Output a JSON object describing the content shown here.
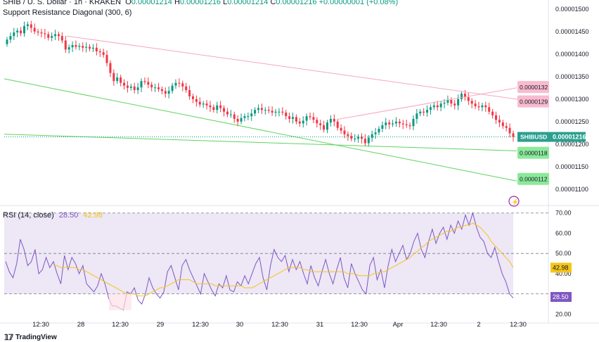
{
  "header": {
    "symbol_line": "SHIB / U. S. Dollar · 1h · KRAKEN",
    "o_label": "O",
    "o_value": "0.00001214",
    "h_label": "H",
    "h_value": "0.00001216",
    "l_label": "L",
    "l_value": "0.00001214",
    "c_label": "C",
    "c_value": "0.00001216",
    "change": "+0.00000001 (+0.08%)",
    "indicator": "Support Resistance Diagonal (300, 6)"
  },
  "rsi_header": {
    "label": "RSI (14, close)",
    "rsi_value": "28.50",
    "ma_value": "42.98"
  },
  "footer": {
    "brand": "TradingView"
  },
  "colors": {
    "up": "#089981",
    "down": "#f23645",
    "resistance": "#f7a6bd",
    "support": "#5fd35f",
    "rsi": "#7e57c2",
    "rsi_ma": "#f5c518",
    "rsi_band": "#ede7f6",
    "price_label": "#2b9f8f"
  },
  "chart_data": [
    {
      "type": "candlestick",
      "title": "SHIB / U. S. Dollar · 1h · KRAKEN",
      "ylim": [
        1.07e-05,
        1.52e-05
      ],
      "y_ticks": [
        "0.00001500",
        "0.00001450",
        "0.00001400",
        "0.00001350",
        "0.00001300",
        "0.00001250",
        "0.00001200",
        "0.00001150",
        "0.00001100"
      ],
      "y_tick_values": [
        1.5e-05,
        1.45e-05,
        1.4e-05,
        1.35e-05,
        1.3e-05,
        1.25e-05,
        1.2e-05,
        1.15e-05,
        1.1e-05
      ],
      "x_ticks": [
        "12:30",
        "28",
        "12:30",
        "29",
        "12:30",
        "30",
        "12:30",
        "31",
        "12:30",
        "Apr",
        "12:30",
        "2",
        "12:30"
      ],
      "close": [
        1.432,
        1.44,
        1.448,
        1.452,
        1.446,
        1.462,
        1.466,
        1.458,
        1.45,
        1.448,
        1.446,
        1.444,
        1.436,
        1.44,
        1.444,
        1.44,
        1.43,
        1.41,
        1.415,
        1.42,
        1.416,
        1.418,
        1.414,
        1.416,
        1.412,
        1.414,
        1.406,
        1.404,
        1.398,
        1.38,
        1.358,
        1.34,
        1.348,
        1.336,
        1.33,
        1.325,
        1.328,
        1.32,
        1.326,
        1.34,
        1.338,
        1.332,
        1.326,
        1.326,
        1.322,
        1.318,
        1.312,
        1.318,
        1.33,
        1.336,
        1.335,
        1.328,
        1.32,
        1.306,
        1.3,
        1.294,
        1.288,
        1.29,
        1.286,
        1.282,
        1.276,
        1.286,
        1.28,
        1.272,
        1.266,
        1.266,
        1.256,
        1.25,
        1.258,
        1.262,
        1.262,
        1.268,
        1.276,
        1.28,
        1.276,
        1.276,
        1.274,
        1.27,
        1.272,
        1.272,
        1.27,
        1.262,
        1.256,
        1.26,
        1.25,
        1.246,
        1.252,
        1.262,
        1.26,
        1.254,
        1.246,
        1.242,
        1.232,
        1.248,
        1.256,
        1.25,
        1.236,
        1.23,
        1.222,
        1.218,
        1.212,
        1.212,
        1.216,
        1.212,
        1.202,
        1.214,
        1.222,
        1.226,
        1.234,
        1.242,
        1.248,
        1.244,
        1.246,
        1.25,
        1.246,
        1.244,
        1.242,
        1.24,
        1.256,
        1.268,
        1.272,
        1.27,
        1.276,
        1.282,
        1.286,
        1.282,
        1.29,
        1.292,
        1.298,
        1.29,
        1.286,
        1.3,
        1.312,
        1.304,
        1.296,
        1.29,
        1.284,
        1.282,
        1.286,
        1.282,
        1.272,
        1.264,
        1.254,
        1.248,
        1.24,
        1.236,
        1.224,
        1.216
      ],
      "resistance_labels": [
        "0.0000132",
        "0.0000129"
      ],
      "support_labels": [
        "0.0000118",
        "0.0000112"
      ],
      "last_price_label": "SHIBUSD",
      "last_price": "0.00001216"
    },
    {
      "type": "line",
      "title": "RSI (14, close)",
      "ylim": [
        20,
        70
      ],
      "y_ticks": [
        "70.00",
        "60.00",
        "50.00",
        "40.00",
        "20.00"
      ],
      "y_tick_values": [
        70,
        60,
        50,
        40,
        20
      ],
      "levels": [
        70,
        50,
        30
      ],
      "series": [
        {
          "name": "RSI",
          "values": [
            46,
            41,
            38,
            45,
            57,
            52,
            44,
            46,
            52,
            40,
            42,
            48,
            43,
            46,
            40,
            35,
            49,
            42,
            48,
            45,
            40,
            44,
            35,
            33,
            31,
            34,
            40,
            35,
            28,
            24,
            24,
            23,
            22,
            31,
            30,
            33,
            27,
            25,
            30,
            38,
            33,
            30,
            28,
            31,
            41,
            44,
            38,
            32,
            44,
            47,
            42,
            38,
            34,
            30,
            40,
            36,
            32,
            29,
            35,
            33,
            39,
            32,
            31,
            36,
            34,
            39,
            35,
            40,
            45,
            48,
            38,
            32,
            44,
            52,
            48,
            46,
            49,
            41,
            47,
            42,
            46,
            40,
            35,
            44,
            38,
            34,
            41,
            47,
            40,
            35,
            42,
            48,
            38,
            33,
            45,
            40,
            36,
            32,
            30,
            44,
            48,
            37,
            42,
            33,
            44,
            52,
            46,
            50,
            54,
            47,
            50,
            56,
            60,
            52,
            48,
            56,
            62,
            55,
            60,
            63,
            57,
            64,
            60,
            66,
            62,
            69,
            64,
            70,
            63,
            58,
            56,
            50,
            48,
            53,
            46,
            40,
            36,
            30,
            28
          ]
        },
        {
          "name": "MA",
          "values": [
            null,
            null,
            null,
            null,
            null,
            null,
            null,
            null,
            null,
            null,
            null,
            null,
            null,
            44,
            44,
            43,
            43,
            43,
            43,
            43,
            42,
            42,
            41,
            40,
            39,
            38,
            37,
            36,
            35,
            34,
            33,
            32,
            31,
            30,
            30,
            30,
            29,
            29,
            29,
            30,
            31,
            32,
            33,
            33,
            34,
            35,
            36,
            37,
            37,
            37,
            37,
            36,
            35,
            35,
            35,
            35,
            35,
            34,
            34,
            34,
            34,
            34,
            34,
            34,
            34,
            33,
            33,
            33,
            34,
            35,
            36,
            37,
            38,
            39,
            40,
            41,
            42,
            43,
            43,
            43,
            43,
            42,
            42,
            41,
            41,
            41,
            41,
            41,
            41,
            41,
            41,
            41,
            41,
            40,
            40,
            40,
            39,
            39,
            39,
            39,
            40,
            40,
            41,
            41,
            42,
            43,
            44,
            45,
            46,
            47,
            48,
            50,
            51,
            53,
            54,
            56,
            57,
            58,
            59,
            60,
            61,
            61,
            62,
            63,
            63,
            64,
            64,
            65,
            64,
            63,
            61,
            59,
            56,
            54,
            52,
            50,
            48,
            46,
            43
          ]
        }
      ],
      "current_rsi": "28.50",
      "current_ma": "42.98"
    }
  ]
}
